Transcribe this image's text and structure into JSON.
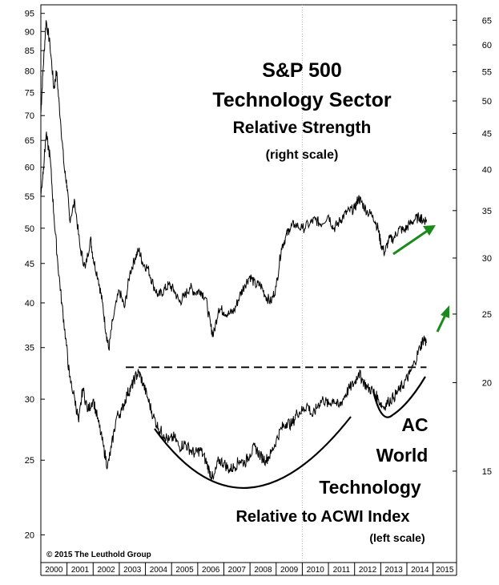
{
  "chart_data": {
    "type": "line",
    "title_lines": [
      "S&P 500",
      "Technology Sector",
      "Relative Strength",
      "(right scale)"
    ],
    "annotation_lines": [
      "AC",
      "World",
      "Technology",
      "Relative to ACWI Index",
      "(left scale)"
    ],
    "copyright": "© 2015 The Leuthold Group",
    "x_axis": {
      "years": [
        "2000",
        "2001",
        "2002",
        "2003",
        "2004",
        "2005",
        "2006",
        "2007",
        "2008",
        "2009",
        "2010",
        "2011",
        "2012",
        "2013",
        "2014",
        "2015"
      ],
      "xlim": [
        2000.0,
        2015.9
      ]
    },
    "left_axis": {
      "scale": "log",
      "ylim": [
        18.5,
        97
      ],
      "ticks": [
        20,
        25,
        30,
        35,
        40,
        45,
        50,
        55,
        60,
        65,
        70,
        75,
        80,
        85,
        90,
        95
      ]
    },
    "right_axis": {
      "scale": "log",
      "ylim": [
        11.2,
        68
      ],
      "ticks": [
        15,
        20,
        25,
        30,
        35,
        40,
        45,
        50,
        55,
        60,
        65
      ]
    },
    "series": [
      {
        "axis": "right",
        "color": "#000000",
        "points": [
          [
            2000.0,
            48
          ],
          [
            2000.08,
            55
          ],
          [
            2000.2,
            65
          ],
          [
            2000.35,
            60
          ],
          [
            2000.5,
            52
          ],
          [
            2000.6,
            55
          ],
          [
            2000.75,
            47
          ],
          [
            2000.9,
            40
          ],
          [
            2001.0,
            38
          ],
          [
            2001.1,
            34
          ],
          [
            2001.3,
            36
          ],
          [
            2001.5,
            31
          ],
          [
            2001.7,
            29
          ],
          [
            2001.9,
            32
          ],
          [
            2002.0,
            30
          ],
          [
            2002.2,
            28
          ],
          [
            2002.35,
            26
          ],
          [
            2002.5,
            23.5
          ],
          [
            2002.6,
            22.3
          ],
          [
            2002.75,
            24.5
          ],
          [
            2003.0,
            27
          ],
          [
            2003.2,
            25.5
          ],
          [
            2003.4,
            28.5
          ],
          [
            2003.6,
            30
          ],
          [
            2003.75,
            30.8
          ],
          [
            2003.9,
            29.5
          ],
          [
            2004.1,
            29
          ],
          [
            2004.3,
            27.5
          ],
          [
            2004.5,
            26.5
          ],
          [
            2004.7,
            27
          ],
          [
            2004.9,
            27.5
          ],
          [
            2005.1,
            27
          ],
          [
            2005.3,
            26
          ],
          [
            2005.5,
            26.5
          ],
          [
            2005.7,
            27.3
          ],
          [
            2005.9,
            26.8
          ],
          [
            2006.1,
            27
          ],
          [
            2006.3,
            26.4
          ],
          [
            2006.5,
            24
          ],
          [
            2006.6,
            23.3
          ],
          [
            2006.8,
            25.5
          ],
          [
            2007.0,
            25.2
          ],
          [
            2007.2,
            25
          ],
          [
            2007.4,
            25.3
          ],
          [
            2007.6,
            26.5
          ],
          [
            2007.8,
            27.5
          ],
          [
            2008.0,
            28.3
          ],
          [
            2008.2,
            27.5
          ],
          [
            2008.4,
            27.5
          ],
          [
            2008.6,
            26.5
          ],
          [
            2008.8,
            26
          ],
          [
            2009.0,
            27.3
          ],
          [
            2009.2,
            31
          ],
          [
            2009.35,
            32
          ],
          [
            2009.5,
            33
          ],
          [
            2009.7,
            33.5
          ],
          [
            2010.0,
            33
          ],
          [
            2010.3,
            33.6
          ],
          [
            2010.5,
            34
          ],
          [
            2010.7,
            33.5
          ],
          [
            2011.0,
            34.5
          ],
          [
            2011.2,
            33
          ],
          [
            2011.4,
            33.7
          ],
          [
            2011.6,
            34.5
          ],
          [
            2011.8,
            35
          ],
          [
            2012.0,
            35.2
          ],
          [
            2012.15,
            36.5
          ],
          [
            2012.3,
            35.8
          ],
          [
            2012.5,
            34.8
          ],
          [
            2012.7,
            34.5
          ],
          [
            2012.9,
            33
          ],
          [
            2013.0,
            31.5
          ],
          [
            2013.15,
            30.5
          ],
          [
            2013.3,
            31.8
          ],
          [
            2013.5,
            32
          ],
          [
            2013.7,
            33
          ],
          [
            2013.9,
            32.8
          ],
          [
            2014.1,
            33.5
          ],
          [
            2014.3,
            34
          ],
          [
            2014.5,
            34.3
          ],
          [
            2014.6,
            33.9
          ],
          [
            2014.75,
            34
          ]
        ]
      },
      {
        "axis": "left",
        "color": "#000000",
        "points": [
          [
            2000.0,
            55
          ],
          [
            2000.1,
            60
          ],
          [
            2000.2,
            66
          ],
          [
            2000.35,
            62
          ],
          [
            2000.5,
            52
          ],
          [
            2000.65,
            45
          ],
          [
            2000.8,
            40
          ],
          [
            2000.95,
            36
          ],
          [
            2001.1,
            32
          ],
          [
            2001.3,
            30
          ],
          [
            2001.45,
            28
          ],
          [
            2001.6,
            31
          ],
          [
            2001.8,
            29
          ],
          [
            2002.0,
            30
          ],
          [
            2002.2,
            28
          ],
          [
            2002.4,
            26
          ],
          [
            2002.55,
            24.5
          ],
          [
            2002.7,
            26
          ],
          [
            2002.9,
            28.5
          ],
          [
            2003.1,
            29
          ],
          [
            2003.3,
            30.5
          ],
          [
            2003.45,
            31
          ],
          [
            2003.6,
            32
          ],
          [
            2003.75,
            32.5
          ],
          [
            2003.9,
            31.5
          ],
          [
            2004.1,
            30
          ],
          [
            2004.3,
            28.5
          ],
          [
            2004.5,
            27.5
          ],
          [
            2004.7,
            27
          ],
          [
            2004.9,
            26.5
          ],
          [
            2005.1,
            26.8
          ],
          [
            2005.3,
            26
          ],
          [
            2005.5,
            26.3
          ],
          [
            2005.7,
            25.8
          ],
          [
            2005.9,
            25.5
          ],
          [
            2006.1,
            25.8
          ],
          [
            2006.3,
            25
          ],
          [
            2006.45,
            24.2
          ],
          [
            2006.6,
            23.6
          ],
          [
            2006.8,
            25
          ],
          [
            2007.0,
            24.8
          ],
          [
            2007.2,
            24.3
          ],
          [
            2007.4,
            24.5
          ],
          [
            2007.6,
            25
          ],
          [
            2007.8,
            24.8
          ],
          [
            2008.0,
            25.5
          ],
          [
            2008.2,
            26
          ],
          [
            2008.4,
            25.3
          ],
          [
            2008.6,
            25
          ],
          [
            2008.8,
            25.5
          ],
          [
            2009.0,
            26.5
          ],
          [
            2009.2,
            27.5
          ],
          [
            2009.4,
            28
          ],
          [
            2009.6,
            27.8
          ],
          [
            2009.8,
            28.8
          ],
          [
            2010.0,
            29
          ],
          [
            2010.2,
            29.5
          ],
          [
            2010.4,
            28.5
          ],
          [
            2010.6,
            29.5
          ],
          [
            2010.8,
            30
          ],
          [
            2011.0,
            29.5
          ],
          [
            2011.2,
            30
          ],
          [
            2011.4,
            29.3
          ],
          [
            2011.6,
            30.2
          ],
          [
            2011.8,
            31
          ],
          [
            2012.0,
            31.5
          ],
          [
            2012.15,
            32.5
          ],
          [
            2012.3,
            31.8
          ],
          [
            2012.5,
            31
          ],
          [
            2012.7,
            30.8
          ],
          [
            2012.9,
            30
          ],
          [
            2013.1,
            29.3
          ],
          [
            2013.3,
            29.8
          ],
          [
            2013.5,
            30.2
          ],
          [
            2013.7,
            30.8
          ],
          [
            2013.9,
            31.5
          ],
          [
            2014.1,
            32.3
          ],
          [
            2014.3,
            33.5
          ],
          [
            2014.5,
            35
          ],
          [
            2014.65,
            36
          ],
          [
            2014.75,
            35.5
          ]
        ]
      }
    ],
    "reference_lines": [
      {
        "style": "dashed",
        "axis": "left",
        "y": 33,
        "x_range": [
          2003.25,
          2014.75
        ]
      }
    ],
    "grid": "vertical line at 2010 only",
    "legend": "none"
  }
}
